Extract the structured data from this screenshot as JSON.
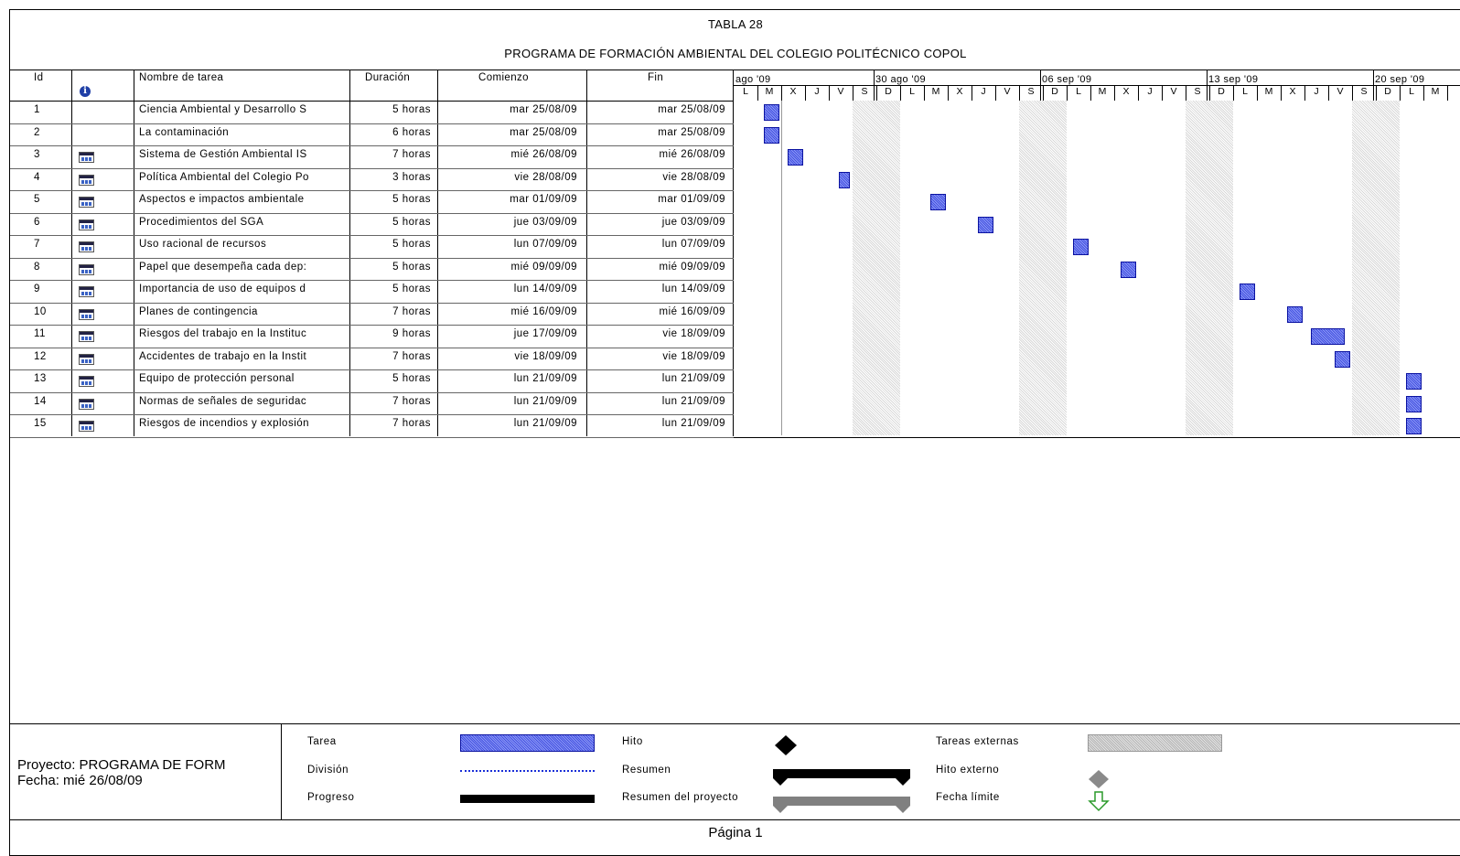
{
  "title": "TABLA 28",
  "subtitle": "PROGRAMA DE FORMACIÓN AMBIENTAL DEL COLEGIO POLITÉCNICO COPOL",
  "columns": {
    "id": "Id",
    "info_icon": "info-icon",
    "name": "Nombre de tarea",
    "duration": "Duración",
    "start": "Comienzo",
    "end": "Fin"
  },
  "timescale": {
    "weeks": [
      "ago '09",
      "30 ago '09",
      "06 sep '09",
      "13 sep '09",
      "20 sep '09"
    ],
    "days": [
      "L",
      "M",
      "X",
      "J",
      "V",
      "S",
      "D",
      "L",
      "M",
      "X",
      "J",
      "V",
      "S",
      "D",
      "L",
      "M",
      "X",
      "J",
      "V",
      "S",
      "D",
      "L",
      "M",
      "X",
      "J",
      "V",
      "S",
      "D",
      "L",
      "M"
    ]
  },
  "tasks": [
    {
      "id": "1",
      "icon": "",
      "name": "Ciencia Ambiental y Desarrollo S",
      "duration": "5 horas",
      "start": "mar 25/08/09",
      "end": "mar 25/08/09"
    },
    {
      "id": "2",
      "icon": "",
      "name": "La contaminación",
      "duration": "6 horas",
      "start": "mar 25/08/09",
      "end": "mar 25/08/09"
    },
    {
      "id": "3",
      "icon": "calendar-icon",
      "name": "Sistema de Gestión Ambiental IS",
      "duration": "7 horas",
      "start": "mié 26/08/09",
      "end": "mié 26/08/09"
    },
    {
      "id": "4",
      "icon": "calendar-icon",
      "name": "Política Ambiental del Colegio Po",
      "duration": "3 horas",
      "start": "vie 28/08/09",
      "end": "vie 28/08/09"
    },
    {
      "id": "5",
      "icon": "calendar-icon",
      "name": "Aspectos e impactos ambientale",
      "duration": "5 horas",
      "start": "mar 01/09/09",
      "end": "mar 01/09/09"
    },
    {
      "id": "6",
      "icon": "calendar-icon",
      "name": "Procedimientos del SGA",
      "duration": "5 horas",
      "start": "jue 03/09/09",
      "end": "jue 03/09/09"
    },
    {
      "id": "7",
      "icon": "calendar-icon",
      "name": "Uso racional de recursos",
      "duration": "5 horas",
      "start": "lun 07/09/09",
      "end": "lun 07/09/09"
    },
    {
      "id": "8",
      "icon": "calendar-icon",
      "name": "Papel que desempeña cada dep:",
      "duration": "5 horas",
      "start": "mié 09/09/09",
      "end": "mié 09/09/09"
    },
    {
      "id": "9",
      "icon": "calendar-icon",
      "name": "Importancia de uso de equipos d",
      "duration": "5 horas",
      "start": "lun 14/09/09",
      "end": "lun 14/09/09"
    },
    {
      "id": "10",
      "icon": "calendar-icon",
      "name": "Planes de contingencia",
      "duration": "7 horas",
      "start": "mié 16/09/09",
      "end": "mié 16/09/09"
    },
    {
      "id": "11",
      "icon": "calendar-icon",
      "name": "Riesgos del trabajo en la Instituc",
      "duration": "9 horas",
      "start": "jue 17/09/09",
      "end": "vie 18/09/09"
    },
    {
      "id": "12",
      "icon": "calendar-icon",
      "name": "Accidentes de trabajo en la Instit",
      "duration": "7 horas",
      "start": "vie 18/09/09",
      "end": "vie 18/09/09"
    },
    {
      "id": "13",
      "icon": "calendar-icon",
      "name": "Equipo de protección personal",
      "duration": "5 horas",
      "start": "lun 21/09/09",
      "end": "lun 21/09/09"
    },
    {
      "id": "14",
      "icon": "calendar-icon",
      "name": "Normas de señales de seguridac",
      "duration": "7 horas",
      "start": "lun 21/09/09",
      "end": "lun 21/09/09"
    },
    {
      "id": "15",
      "icon": "calendar-icon",
      "name": "Riesgos de incendios y explosión",
      "duration": "7 horas",
      "start": "lun 21/09/09",
      "end": "lun 21/09/09"
    }
  ],
  "legend": {
    "project": "Proyecto: PROGRAMA DE FORM",
    "date": "Fecha: mié 26/08/09",
    "tarea": "Tarea",
    "division": "División",
    "progreso": "Progreso",
    "hito": "Hito",
    "resumen": "Resumen",
    "resumen_proyecto": "Resumen del proyecto",
    "tareas_externas": "Tareas externas",
    "hito_externo": "Hito externo",
    "fecha_limite": "Fecha límite"
  },
  "footer": "Página 1",
  "colors": {
    "task_bar": "#6f7ef2",
    "task_border": "#0a12a0",
    "external": "#c8c8c8",
    "deadline": "#2a9a2a"
  }
}
